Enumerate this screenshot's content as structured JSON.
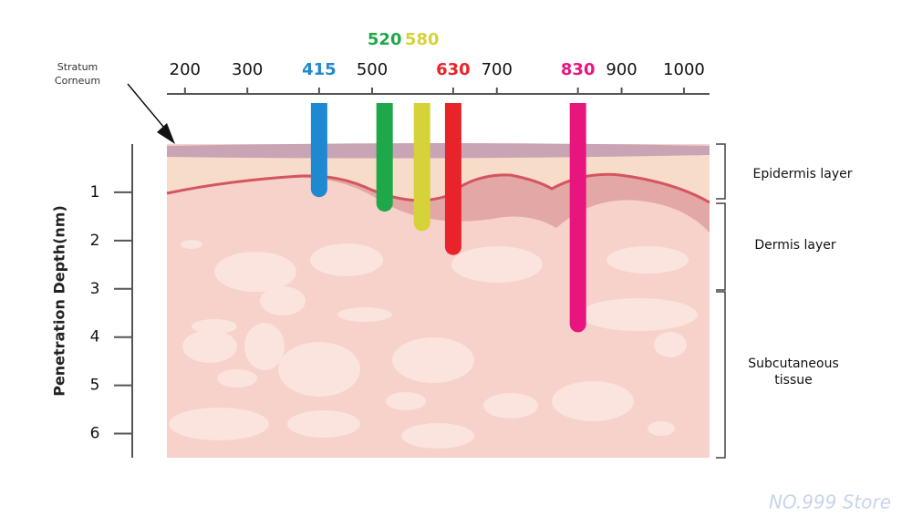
{
  "chart_data": {
    "type": "penetration",
    "y_label": "Penetration Depth(nm)",
    "xlim": [
      171,
      1041
    ],
    "xticks": [
      200,
      300,
      500,
      700,
      900,
      1000
    ],
    "ylim": [
      0,
      6.5
    ],
    "yticks": [
      1,
      2,
      3,
      4,
      5,
      6
    ],
    "series": [
      {
        "x": 415,
        "color": "#1e88d0",
        "values": [
          1.1
        ]
      },
      {
        "x": 520,
        "color": "#1ea84a",
        "values": [
          1.4
        ]
      },
      {
        "x": 580,
        "color": "#d6d23a",
        "values": [
          1.8
        ]
      },
      {
        "x": 630,
        "color": "#e8242a",
        "values": [
          2.3
        ]
      },
      {
        "x": 830,
        "color": "#e8157f",
        "values": [
          3.9
        ]
      }
    ],
    "annotations": {
      "stratum": "Stratum Corneum",
      "epidermis": "Epidermis layer",
      "dermis": "Dermis layer",
      "subcutaneous": "Subcutaneous tissue",
      "watermark": "NO.999 Store"
    }
  }
}
